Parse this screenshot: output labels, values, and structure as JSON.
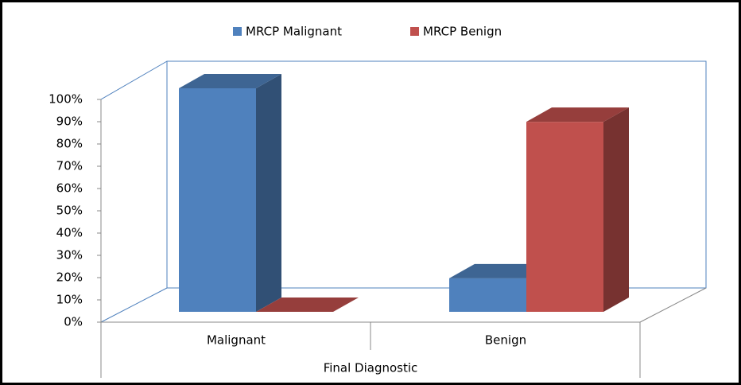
{
  "chart_data": {
    "type": "bar3d",
    "categories": [
      "Malignant",
      "Benign"
    ],
    "series": [
      {
        "name": "MRCP Malignant",
        "color": "#4f81bd",
        "values": [
          100,
          15
        ]
      },
      {
        "name": "MRCP Benign",
        "color": "#c0504d",
        "values": [
          0,
          85
        ]
      }
    ],
    "ylim": [
      0,
      100
    ],
    "yticks": [
      {
        "value": 0,
        "label": "0%"
      },
      {
        "value": 10,
        "label": "10%"
      },
      {
        "value": 20,
        "label": "20%"
      },
      {
        "value": 30,
        "label": "30%"
      },
      {
        "value": 40,
        "label": "40%"
      },
      {
        "value": 50,
        "label": "50%"
      },
      {
        "value": 60,
        "label": "60%"
      },
      {
        "value": 70,
        "label": "70%"
      },
      {
        "value": 80,
        "label": "80%"
      },
      {
        "value": 90,
        "label": "90%"
      },
      {
        "value": 100,
        "label": "100%"
      }
    ],
    "xlabel": "Final Diagnostic",
    "legend": "top",
    "grid": false
  }
}
